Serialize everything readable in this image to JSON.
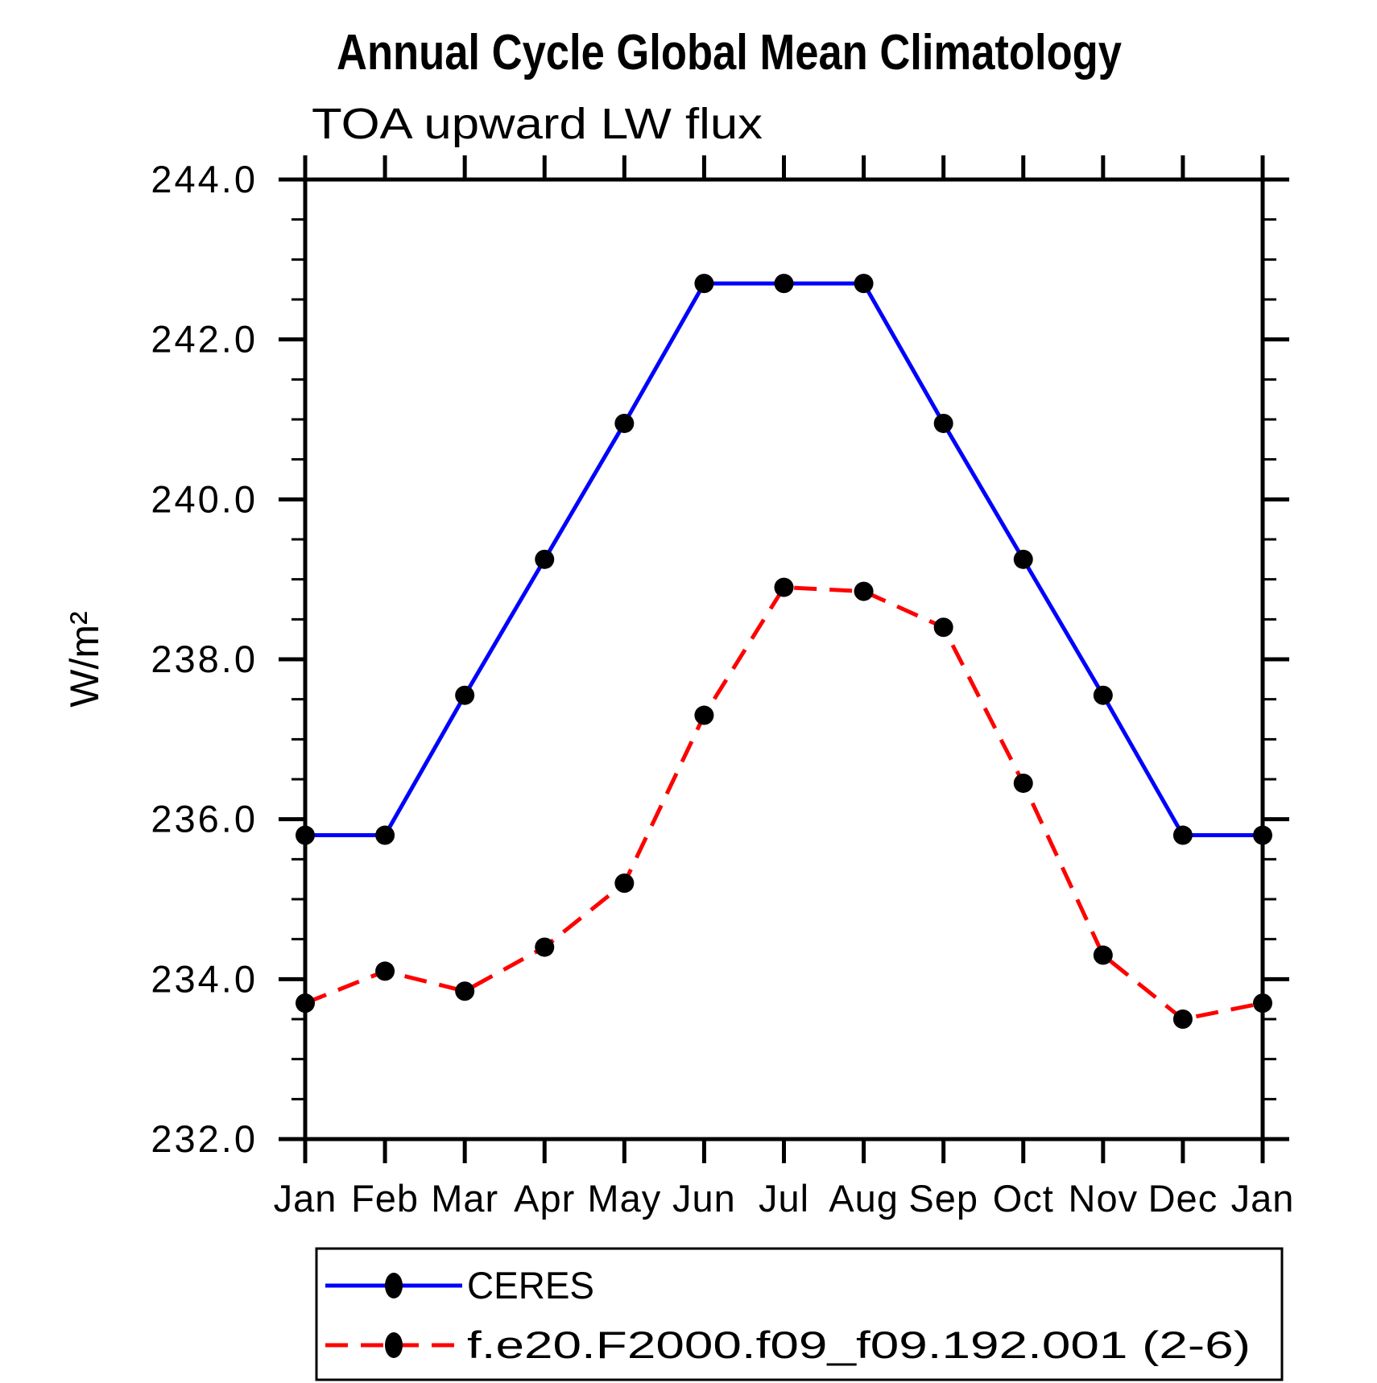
{
  "chart_data": {
    "type": "line",
    "title": "Annual Cycle Global Mean Climatology",
    "subtitle": "TOA upward LW flux",
    "ylabel": "W/m²",
    "xlabel": "",
    "categories": [
      "Jan",
      "Feb",
      "Mar",
      "Apr",
      "May",
      "Jun",
      "Jul",
      "Aug",
      "Sep",
      "Oct",
      "Nov",
      "Dec",
      "Jan"
    ],
    "series": [
      {
        "name": "CERES",
        "color": "#0000ff",
        "line_style": "solid",
        "marker": "filled-circle",
        "marker_color": "#000000",
        "values": [
          235.8,
          235.8,
          237.55,
          239.25,
          240.95,
          242.7,
          242.7,
          242.7,
          240.95,
          239.25,
          237.55,
          235.8,
          235.8
        ]
      },
      {
        "name": "f.e20.F2000.f09_f09.192.001 (2-6)",
        "color": "#ff0000",
        "line_style": "dashed",
        "marker": "filled-circle",
        "marker_color": "#000000",
        "values": [
          233.7,
          234.1,
          233.85,
          234.4,
          235.2,
          237.3,
          238.9,
          238.85,
          238.4,
          236.45,
          234.3,
          233.5,
          233.7
        ]
      }
    ],
    "ylim": [
      232.0,
      244.0
    ],
    "y_major_step": 2.0,
    "y_minor_step": 0.5,
    "y_tick_labels": [
      "244.0",
      "242.0",
      "240.0",
      "238.0",
      "236.0",
      "234.0",
      "232.0"
    ],
    "grid": false,
    "legend_position": "bottom",
    "frame_color": "#000000",
    "background_color": "#ffffff"
  }
}
